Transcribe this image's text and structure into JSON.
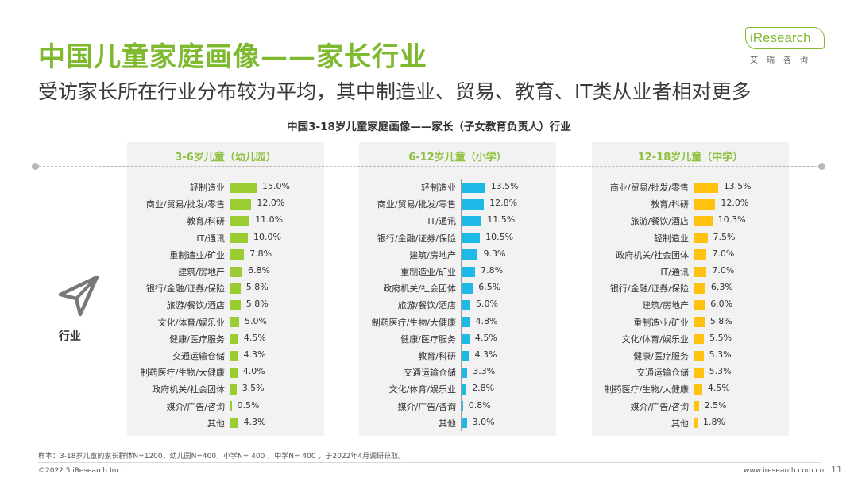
{
  "header": {
    "title": "中国儿童家庭画像——家长行业",
    "subtitle": "受访家长所在行业分布较为平均，其中制造业、贸易、教育、IT类从业者相对更多"
  },
  "logo": {
    "brand": "iResearch",
    "sub": "艾瑞咨询",
    "color": "#7fb92f"
  },
  "side": {
    "label": "行业",
    "icon": "paper-plane-icon"
  },
  "chart_data": [
    {
      "type": "bar",
      "orientation": "horizontal",
      "title": "中国3-18岁儿童家庭画像——家长（子女教育负责人）行业",
      "panel_title": "3-6岁儿童（幼儿园）",
      "color": "#9acd32",
      "categories": [
        "轻制造业",
        "商业/贸易/批发/零售",
        "教育/科研",
        "IT/通讯",
        "重制造业/矿业",
        "建筑/房地产",
        "银行/金融/证券/保险",
        "旅游/餐饮/酒店",
        "文化/体育/娱乐业",
        "健康/医疗服务",
        "交通运输仓储",
        "制药医疗/生物/大健康",
        "政府机关/社会团体",
        "媒介/广告/咨询",
        "其他"
      ],
      "values": [
        15.0,
        12.0,
        11.0,
        10.0,
        7.8,
        6.8,
        5.8,
        5.8,
        5.0,
        4.5,
        4.3,
        4.0,
        3.5,
        0.5,
        4.3
      ],
      "labels": [
        "15.0%",
        "12.0%",
        "11.0%",
        "10.0%",
        "7.8%",
        "6.8%",
        "5.8%",
        "5.8%",
        "5.0%",
        "4.5%",
        "4.3%",
        "4.0%",
        "3.5%",
        "0.5%",
        "4.3%"
      ],
      "xlim": [
        0,
        16
      ]
    },
    {
      "type": "bar",
      "orientation": "horizontal",
      "panel_title": "6-12岁儿童（小学）",
      "color": "#1fb9e8",
      "categories": [
        "轻制造业",
        "商业/贸易/批发/零售",
        "IT/通讯",
        "银行/金融/证券/保险",
        "建筑/房地产",
        "重制造业/矿业",
        "政府机关/社会团体",
        "旅游/餐饮/酒店",
        "制药医疗/生物/大健康",
        "健康/医疗服务",
        "教育/科研",
        "交通运输仓储",
        "文化/体育/娱乐业",
        "媒介/广告/咨询",
        "其他"
      ],
      "values": [
        13.5,
        12.8,
        11.5,
        10.5,
        9.3,
        7.8,
        6.5,
        5.0,
        4.8,
        4.5,
        4.3,
        3.3,
        2.8,
        0.8,
        3.0
      ],
      "labels": [
        "13.5%",
        "12.8%",
        "11.5%",
        "10.5%",
        "9.3%",
        "7.8%",
        "6.5%",
        "5.0%",
        "4.8%",
        "4.5%",
        "4.3%",
        "3.3%",
        "2.8%",
        "0.8%",
        "3.0%"
      ],
      "xlim": [
        0,
        16
      ]
    },
    {
      "type": "bar",
      "orientation": "horizontal",
      "panel_title": "12-18岁儿童（中学）",
      "color": "#ffc20e",
      "categories": [
        "商业/贸易/批发/零售",
        "教育/科研",
        "旅游/餐饮/酒店",
        "轻制造业",
        "政府机关/社会团体",
        "IT/通讯",
        "银行/金融/证券/保险",
        "建筑/房地产",
        "重制造业/矿业",
        "文化/体育/娱乐业",
        "健康/医疗服务",
        "交通运输仓储",
        "制药医疗/生物/大健康",
        "媒介/广告/咨询",
        "其他"
      ],
      "values": [
        13.5,
        12.0,
        10.3,
        7.5,
        7.0,
        7.0,
        6.3,
        6.0,
        5.8,
        5.5,
        5.3,
        5.3,
        4.5,
        2.5,
        1.8
      ],
      "labels": [
        "13.5%",
        "12.0%",
        "10.3%",
        "7.5%",
        "7.0%",
        "7.0%",
        "6.3%",
        "6.0%",
        "5.8%",
        "5.5%",
        "5.3%",
        "5.3%",
        "4.5%",
        "2.5%",
        "1.8%"
      ],
      "xlim": [
        0,
        16
      ]
    }
  ],
  "footer": {
    "note": "样本：3-18岁儿童的家长群体N=1200，幼儿园N=400，小学N= 400 ，中学N= 400 ，于2022年4月调研获取。",
    "copyright": "©2022.5 iResearch Inc.",
    "website": "www.iresearch.com.cn",
    "page": "11"
  }
}
